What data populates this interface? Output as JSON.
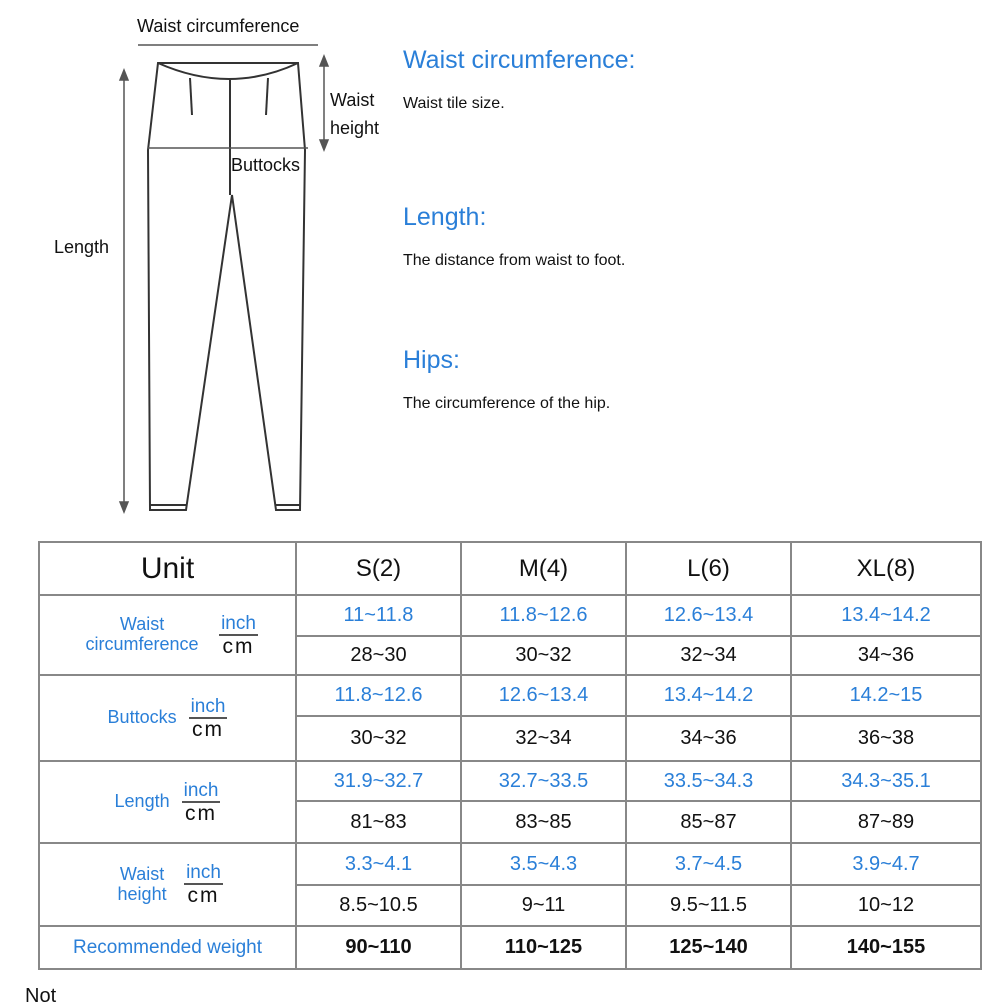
{
  "diagram": {
    "labels": {
      "waist_circumference": "Waist circumference",
      "waist_height": "Waist\nheight",
      "buttocks": "Buttocks",
      "length": "Length"
    }
  },
  "definitions": [
    {
      "title": "Waist circumference:",
      "text": "Waist tile size."
    },
    {
      "title": "Length:",
      "text": "The distance from waist to foot."
    },
    {
      "title": "Hips:",
      "text": "The circumference of the hip."
    }
  ],
  "table": {
    "header": [
      "Unit",
      "S(2)",
      "M(4)",
      "L(6)",
      "XL(8)"
    ],
    "unit_inch": "inch",
    "unit_cm": "cm",
    "rows": [
      {
        "label": "Waist circumference",
        "inch": [
          "11~11.8",
          "11.8~12.6",
          "12.6~13.4",
          "13.4~14.2"
        ],
        "cm": [
          "28~30",
          "30~32",
          "32~34",
          "34~36"
        ]
      },
      {
        "label": "Buttocks",
        "inch": [
          "11.8~12.6",
          "12.6~13.4",
          "13.4~14.2",
          "14.2~15"
        ],
        "cm": [
          "30~32",
          "32~34",
          "34~36",
          "36~38"
        ]
      },
      {
        "label": "Length",
        "inch": [
          "31.9~32.7",
          "32.7~33.5",
          "33.5~34.3",
          "34.3~35.1"
        ],
        "cm": [
          "81~83",
          "83~85",
          "85~87",
          "87~89"
        ]
      },
      {
        "label": "Waist height",
        "inch": [
          "3.3~4.1",
          "3.5~4.3",
          "3.7~4.5",
          "3.9~4.7"
        ],
        "cm": [
          "8.5~10.5",
          "9~11",
          "9.5~11.5",
          "10~12"
        ]
      }
    ],
    "weight": {
      "label": "Recommended weight",
      "values": [
        "90~110",
        "110~125",
        "125~140",
        "140~155"
      ]
    }
  },
  "note": "Not",
  "colors": {
    "accent": "#2a7fd8"
  }
}
